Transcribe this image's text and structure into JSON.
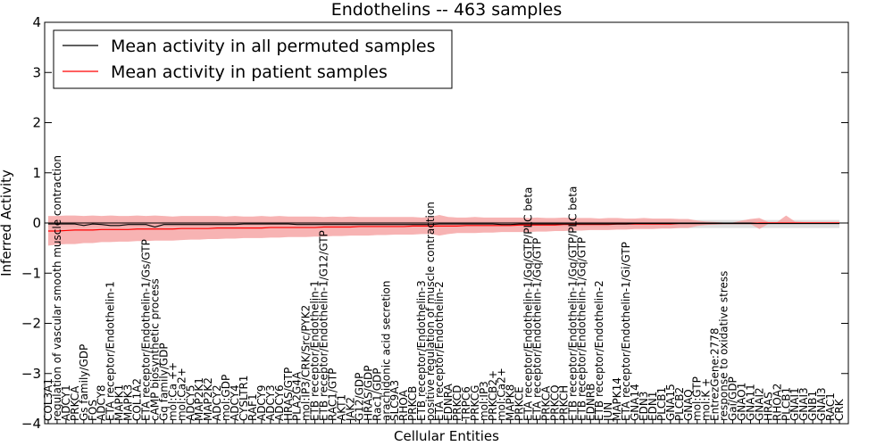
{
  "chart_data": {
    "type": "line",
    "title": "Endothelins -- 463 samples",
    "xlabel": "Cellular Entities",
    "ylabel": "Inferred Activity",
    "ylim": [
      -4,
      4
    ],
    "yticks": [
      "4",
      "3",
      "2",
      "1",
      "0",
      "−1",
      "−2",
      "−3",
      "−4"
    ],
    "ytick_values": [
      4,
      3,
      2,
      1,
      0,
      -1,
      -2,
      -3,
      -4
    ],
    "legend": {
      "location": "upper-left",
      "entries": [
        {
          "label": "Mean activity in all permuted samples",
          "color": "#000000"
        },
        {
          "label": "Mean activity in patient samples",
          "color": "#ff0000"
        }
      ]
    },
    "colors": {
      "permuted_line": "#000000",
      "permuted_band": "#d9d9d9",
      "patient_line": "#ff0000",
      "patient_band": "#f5a0a0"
    },
    "categories": [
      "COL3A1",
      "regulation of vascular smooth muscle contraction",
      "ADCY1",
      "PRKCA",
      "Gs family/GDP",
      "FOS",
      "ADCY8",
      "ETA receptor/Endothelin-1",
      "MAPK1",
      "MAPK3",
      "COL1A2",
      "ETA receptor/Endothelin-1/Gs/GTP",
      "cAMP biosynthetic process",
      "Gq family/GDP",
      "mol:Ca ++",
      "mol:Ca2+",
      "ADCY5",
      "MAP2K1",
      "MAP2K2",
      "ADCY2",
      "mol:GDP",
      "ADCY4",
      "CYSLTR1",
      "RAF1",
      "ADCY9",
      "ADCY3",
      "ADCY6",
      "HRAS/GTP",
      "PLA2G4A",
      "mol:IP3/CRK/Src/PYK2",
      "ETB receptor/Endothelin-1",
      "ETB receptor/Endothelin-1/G12/GTP",
      "RAC1/GTP",
      "AKT1",
      "JAK2",
      "G12/GDP",
      "HRAS/GDP",
      "Rac1/GDP",
      "arachidonic acid secretion",
      "SLC9A3",
      "RHOA",
      "PRKCB",
      "ETB receptor/Endothelin-3",
      "positive regulation of muscle contraction",
      "ETA receptor/Endothelin-2",
      "EDNRA",
      "PRKCD",
      "TRPC6",
      "PRKCG",
      "mol:IP3",
      "PRKCB2+",
      "mol:Ca2+",
      "MAPK8",
      "PRKCE",
      "ETA receptor/Endothelin-1/Gq/GTP/PLC beta",
      "ETA receptor/Endothelin-1/Gq/GTP",
      "PRKCA",
      "PRKCQ",
      "PRKCH",
      "ETB receptor/Endothelin-1/Gq/GTP/PLC beta",
      "ETB receptor/Endothelin-1/Gq/GTP",
      "EDNRB",
      "ETB receptor/Endothelin-2",
      "JUN",
      "MAPK14",
      "ETA receptor/Endothelin-1/Gi/GTP",
      "GNA14",
      "EDN3",
      "EDN1",
      "PLCB1",
      "GNA15",
      "PLCB2",
      "GNAQ",
      "mol:GTP",
      "mol:K +",
      "EntrezGene:2778",
      "response to oxidative stress",
      "Gai/GDP",
      "GNAO1",
      "GNA11",
      "GNAI2",
      "HRAS",
      "RHOA2",
      "PLCB1",
      "GNAI1",
      "GNAI3",
      "GNB1",
      "GNAI3",
      "RAC1",
      "CRK"
    ],
    "series": [
      {
        "name": "Mean activity in all permuted samples",
        "values": [
          -0.02,
          -0.02,
          -0.02,
          -0.02,
          -0.05,
          -0.02,
          -0.03,
          -0.05,
          -0.05,
          -0.03,
          -0.03,
          -0.03,
          -0.08,
          -0.03,
          -0.03,
          -0.03,
          -0.03,
          -0.03,
          -0.03,
          -0.03,
          -0.03,
          -0.03,
          -0.02,
          -0.02,
          -0.02,
          -0.02,
          -0.02,
          -0.02,
          -0.03,
          -0.03,
          -0.03,
          -0.03,
          -0.03,
          -0.03,
          -0.03,
          -0.03,
          -0.03,
          -0.03,
          -0.03,
          -0.03,
          -0.03,
          -0.03,
          -0.03,
          -0.03,
          -0.02,
          -0.02,
          -0.02,
          -0.02,
          -0.02,
          -0.02,
          -0.02,
          -0.03,
          -0.03,
          -0.02,
          -0.02,
          -0.02,
          -0.02,
          -0.02,
          -0.02,
          -0.02,
          -0.02,
          -0.02,
          -0.02,
          -0.02,
          -0.02,
          -0.02,
          -0.01,
          -0.01,
          -0.01,
          -0.01,
          -0.01,
          -0.01,
          -0.01,
          -0.01,
          -0.01,
          -0.01,
          -0.01,
          -0.01,
          -0.01,
          -0.01,
          -0.01,
          -0.01,
          -0.01,
          -0.01,
          -0.01,
          -0.01,
          -0.01,
          -0.01,
          -0.01,
          -0.01
        ],
        "lower": [
          -0.08,
          -0.08,
          -0.08,
          -0.08,
          -0.1,
          -0.08,
          -0.08,
          -0.1,
          -0.1,
          -0.08,
          -0.08,
          -0.08,
          -0.12,
          -0.08,
          -0.08,
          -0.08,
          -0.08,
          -0.08,
          -0.08,
          -0.08,
          -0.08,
          -0.08,
          -0.08,
          -0.08,
          -0.08,
          -0.08,
          -0.08,
          -0.08,
          -0.08,
          -0.08,
          -0.08,
          -0.08,
          -0.08,
          -0.08,
          -0.08,
          -0.08,
          -0.08,
          -0.08,
          -0.08,
          -0.08,
          -0.08,
          -0.08,
          -0.08,
          -0.08,
          -0.08,
          -0.08,
          -0.08,
          -0.08,
          -0.08,
          -0.08,
          -0.08,
          -0.08,
          -0.08,
          -0.08,
          -0.08,
          -0.08,
          -0.08,
          -0.08,
          -0.08,
          -0.08,
          -0.08,
          -0.08,
          -0.08,
          -0.08,
          -0.08,
          -0.08,
          -0.1,
          -0.1,
          -0.1,
          -0.1,
          -0.1,
          -0.1,
          -0.1,
          -0.1,
          -0.1,
          -0.1,
          -0.1,
          -0.1,
          -0.1,
          -0.1,
          -0.1,
          -0.1,
          -0.1,
          -0.1,
          -0.1,
          -0.1,
          -0.1,
          -0.1,
          -0.1,
          -0.1
        ],
        "upper": [
          0.04,
          0.04,
          0.04,
          0.04,
          0.02,
          0.04,
          0.03,
          0.02,
          0.02,
          0.03,
          0.03,
          0.03,
          0.0,
          0.03,
          0.03,
          0.03,
          0.03,
          0.03,
          0.03,
          0.03,
          0.03,
          0.03,
          0.04,
          0.04,
          0.04,
          0.04,
          0.04,
          0.04,
          0.03,
          0.03,
          0.03,
          0.03,
          0.03,
          0.03,
          0.03,
          0.03,
          0.03,
          0.03,
          0.03,
          0.03,
          0.03,
          0.03,
          0.03,
          0.03,
          0.04,
          0.04,
          0.04,
          0.04,
          0.04,
          0.04,
          0.04,
          0.03,
          0.03,
          0.04,
          0.04,
          0.04,
          0.04,
          0.04,
          0.04,
          0.04,
          0.04,
          0.04,
          0.04,
          0.04,
          0.04,
          0.04,
          0.06,
          0.06,
          0.06,
          0.06,
          0.06,
          0.06,
          0.06,
          0.06,
          0.06,
          0.06,
          0.06,
          0.06,
          0.06,
          0.06,
          0.06,
          0.06,
          0.06,
          0.06,
          0.06,
          0.06,
          0.06,
          0.06,
          0.06,
          0.06
        ]
      },
      {
        "name": "Mean activity in patient samples",
        "values": [
          -0.16,
          -0.16,
          -0.15,
          -0.14,
          -0.14,
          -0.14,
          -0.13,
          -0.13,
          -0.13,
          -0.13,
          -0.12,
          -0.12,
          -0.12,
          -0.12,
          -0.12,
          -0.11,
          -0.11,
          -0.11,
          -0.11,
          -0.1,
          -0.1,
          -0.1,
          -0.1,
          -0.1,
          -0.1,
          -0.09,
          -0.09,
          -0.09,
          -0.09,
          -0.09,
          -0.09,
          -0.08,
          -0.08,
          -0.08,
          -0.08,
          -0.07,
          -0.07,
          -0.07,
          -0.07,
          -0.07,
          -0.07,
          -0.06,
          -0.06,
          -0.06,
          -0.06,
          -0.06,
          -0.06,
          -0.05,
          -0.05,
          -0.05,
          -0.05,
          -0.05,
          -0.05,
          -0.04,
          -0.04,
          -0.04,
          -0.04,
          -0.04,
          -0.03,
          -0.03,
          -0.03,
          -0.03,
          -0.03,
          -0.03,
          -0.02,
          -0.02,
          -0.02,
          -0.02,
          -0.02,
          -0.02,
          -0.02,
          -0.01,
          -0.01,
          -0.01,
          -0.01,
          -0.01,
          -0.01,
          -0.01,
          -0.01,
          -0.01,
          0.0,
          0.0,
          0.0,
          0.0,
          0.0,
          0.0,
          0.0,
          0.0,
          0.0,
          0.0
        ],
        "lower": [
          -0.45,
          -0.43,
          -0.42,
          -0.42,
          -0.4,
          -0.4,
          -0.38,
          -0.38,
          -0.37,
          -0.37,
          -0.36,
          -0.36,
          -0.35,
          -0.35,
          -0.35,
          -0.34,
          -0.33,
          -0.33,
          -0.32,
          -0.32,
          -0.31,
          -0.31,
          -0.3,
          -0.3,
          -0.3,
          -0.29,
          -0.29,
          -0.28,
          -0.28,
          -0.28,
          -0.27,
          -0.27,
          -0.26,
          -0.26,
          -0.25,
          -0.25,
          -0.25,
          -0.24,
          -0.24,
          -0.23,
          -0.23,
          -0.23,
          -0.22,
          -0.22,
          -0.25,
          -0.22,
          -0.2,
          -0.2,
          -0.2,
          -0.19,
          -0.19,
          -0.18,
          -0.18,
          -0.18,
          -0.18,
          -0.17,
          -0.17,
          -0.16,
          -0.16,
          -0.15,
          -0.15,
          -0.14,
          -0.14,
          -0.14,
          -0.13,
          -0.13,
          -0.12,
          -0.12,
          -0.12,
          -0.11,
          -0.11,
          -0.1,
          -0.1,
          -0.06,
          -0.04,
          -0.03,
          -0.02,
          -0.02,
          -0.02,
          -0.02,
          -0.12,
          -0.02,
          -0.02,
          -0.02,
          -0.02,
          -0.02,
          -0.02,
          -0.02,
          -0.02,
          -0.02
        ],
        "upper": [
          0.14,
          0.14,
          0.15,
          0.15,
          0.14,
          0.15,
          0.14,
          0.15,
          0.14,
          0.14,
          0.15,
          0.14,
          0.15,
          0.14,
          0.13,
          0.14,
          0.14,
          0.14,
          0.14,
          0.14,
          0.13,
          0.14,
          0.13,
          0.13,
          0.14,
          0.13,
          0.14,
          0.13,
          0.13,
          0.13,
          0.13,
          0.12,
          0.13,
          0.12,
          0.13,
          0.12,
          0.12,
          0.12,
          0.12,
          0.12,
          0.12,
          0.12,
          0.11,
          0.12,
          0.16,
          0.12,
          0.11,
          0.11,
          0.12,
          0.11,
          0.11,
          0.11,
          0.11,
          0.11,
          0.1,
          0.11,
          0.1,
          0.1,
          0.11,
          0.1,
          0.1,
          0.1,
          0.09,
          0.1,
          0.1,
          0.09,
          0.09,
          0.1,
          0.09,
          0.09,
          0.09,
          0.08,
          0.08,
          0.05,
          0.03,
          0.02,
          0.01,
          0.01,
          0.05,
          0.08,
          0.1,
          0.02,
          0.02,
          0.15,
          0.03,
          0.02,
          0.02,
          0.02,
          0.02,
          0.02
        ]
      }
    ]
  }
}
